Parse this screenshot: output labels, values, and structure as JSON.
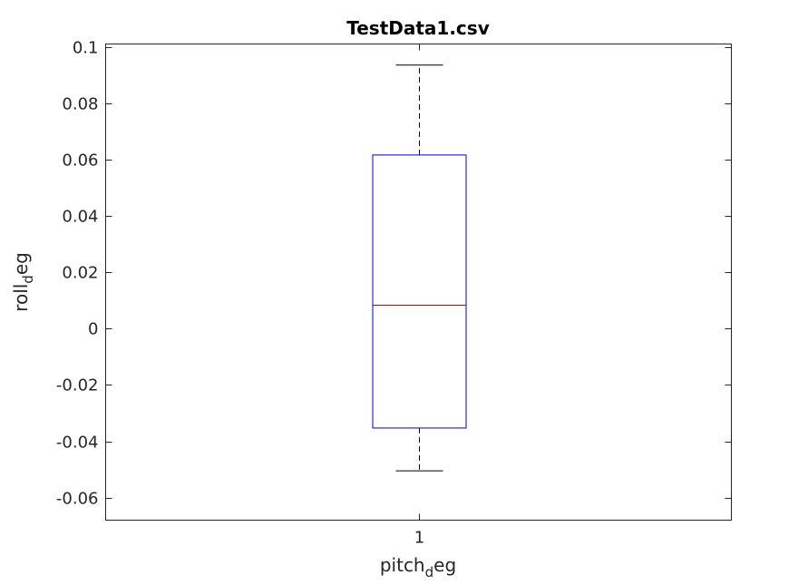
{
  "chart_data": {
    "type": "box",
    "title": "TestData1.csv",
    "xlabel": {
      "main": "pitch",
      "sub": "d",
      "tail": "eg"
    },
    "ylabel": {
      "main": "roll",
      "sub": "d",
      "tail": "eg"
    },
    "categories": [
      "1"
    ],
    "ylim": [
      -0.068,
      0.101
    ],
    "yticks": [
      -0.06,
      -0.04,
      -0.02,
      0,
      0.02,
      0.04,
      0.06,
      0.08,
      0.1
    ],
    "ytick_labels": [
      "-0.06",
      "-0.04",
      "-0.02",
      "0",
      "0.02",
      "0.04",
      "0.06",
      "0.08",
      "0.1"
    ],
    "boxes": [
      {
        "category": "1",
        "whisker_low": -0.0505,
        "q1": -0.0353,
        "median": 0.0083,
        "q3": 0.0616,
        "whisker_high": 0.0935
      }
    ],
    "grid": false,
    "colors": {
      "box": "#0000cc",
      "median": "#cc0000",
      "whisker": "#000000",
      "axis": "#262626"
    }
  }
}
